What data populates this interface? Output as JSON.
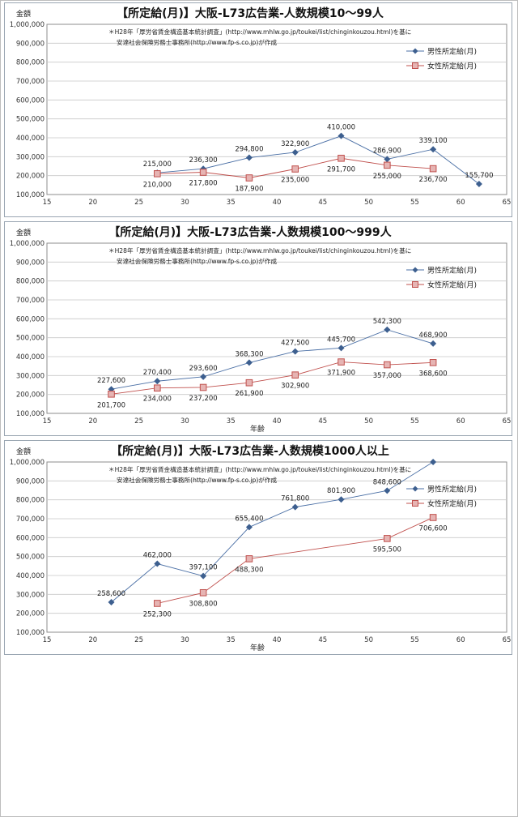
{
  "chart_data": [
    {
      "type": "line",
      "title": "【所定給(月)】大阪-L73広告業-人数規模10～99人",
      "ylabel": "金額",
      "xlabel": "",
      "source_note": [
        "＊H28年「厚労省賃金構造基本統計調査」(http://www.mhlw.go.jp/toukei/list/chinginkouzou.html)を基に",
        "安達社会保険労務士事務所(http://www.fp-s.co.jp)が作成"
      ],
      "xlim": [
        15,
        65
      ],
      "ylim": [
        100000,
        1000000
      ],
      "xticks": [
        "15",
        "20",
        "25",
        "30",
        "35",
        "40",
        "45",
        "50",
        "55",
        "60",
        "65"
      ],
      "yticks": [
        "100,000",
        "200,000",
        "300,000",
        "400,000",
        "500,000",
        "600,000",
        "700,000",
        "800,000",
        "900,000",
        "1,000,000"
      ],
      "legend_position": "top-right",
      "series": [
        {
          "name": "男性所定給(月)",
          "color": "#4a6fa5",
          "marker": "diamond",
          "x": [
            27,
            32,
            37,
            42,
            47,
            52,
            57,
            62
          ],
          "values": [
            215000,
            236300,
            294800,
            322900,
            410000,
            286900,
            339100,
            155700
          ],
          "labels": [
            "215,000",
            "236,300",
            "294,800",
            "322,900",
            "410,000",
            "286,900",
            "339,100",
            "155,700"
          ]
        },
        {
          "name": "女性所定給(月)",
          "color": "#c0504d",
          "marker": "square",
          "x": [
            27,
            32,
            37,
            42,
            47,
            52,
            57
          ],
          "values": [
            210000,
            217800,
            187900,
            235000,
            291700,
            255000,
            236700
          ],
          "labels": [
            "210,000",
            "217,800",
            "187,900",
            "235,000",
            "291,700",
            "255,000",
            "236,700"
          ]
        }
      ]
    },
    {
      "type": "line",
      "title": "【所定給(月)】大阪-L73広告業-人数規模100～999人",
      "ylabel": "金額",
      "xlabel": "年齢",
      "source_note": [
        "＊H28年「厚労省賃金構造基本統計調査」(http://www.mhlw.go.jp/toukei/list/chinginkouzou.html)を基に",
        "安達社会保険労務士事務所(http://www.fp-s.co.jp)が作成"
      ],
      "xlim": [
        15,
        65
      ],
      "ylim": [
        100000,
        1000000
      ],
      "xticks": [
        "15",
        "20",
        "25",
        "30",
        "35",
        "40",
        "45",
        "50",
        "55",
        "60",
        "65"
      ],
      "yticks": [
        "100,000",
        "200,000",
        "300,000",
        "400,000",
        "500,000",
        "600,000",
        "700,000",
        "800,000",
        "900,000",
        "1,000,000"
      ],
      "legend_position": "top-right",
      "series": [
        {
          "name": "男性所定給(月)",
          "color": "#4a6fa5",
          "marker": "diamond",
          "x": [
            22,
            27,
            32,
            37,
            42,
            47,
            52,
            57
          ],
          "values": [
            227600,
            270400,
            293600,
            368300,
            427500,
            445700,
            542300,
            468900
          ],
          "labels": [
            "227,600",
            "270,400",
            "293,600",
            "368,300",
            "427,500",
            "445,700",
            "542,300",
            "468,900"
          ]
        },
        {
          "name": "女性所定給(月)",
          "color": "#c0504d",
          "marker": "square",
          "x": [
            22,
            27,
            32,
            37,
            42,
            47,
            52,
            57
          ],
          "values": [
            201700,
            234000,
            237200,
            261900,
            302900,
            371900,
            357000,
            368600
          ],
          "labels": [
            "201,700",
            "234,000",
            "237,200",
            "261,900",
            "302,900",
            "371,900",
            "357,000",
            "368,600"
          ]
        }
      ]
    },
    {
      "type": "line",
      "title": "【所定給(月)】大阪-L73広告業-人数規模1000人以上",
      "ylabel": "金額",
      "xlabel": "年齢",
      "source_note": [
        "＊H28年「厚労省賃金構造基本統計調査」(http://www.mhlw.go.jp/toukei/list/chinginkouzou.html)を基に",
        "安達社会保険労務士事務所(http://www.fp-s.co.jp)が作成"
      ],
      "xlim": [
        15,
        65
      ],
      "ylim": [
        100000,
        1000000
      ],
      "xticks": [
        "15",
        "20",
        "25",
        "30",
        "35",
        "40",
        "45",
        "50",
        "55",
        "60",
        "65"
      ],
      "yticks": [
        "100,000",
        "200,000",
        "300,000",
        "400,000",
        "500,000",
        "600,000",
        "700,000",
        "800,000",
        "900,000",
        "1,000,000"
      ],
      "legend_position": "top-right",
      "series": [
        {
          "name": "男性所定給(月)",
          "color": "#4a6fa5",
          "marker": "diamond",
          "x": [
            22,
            27,
            32,
            37,
            42,
            47,
            52,
            57
          ],
          "values": [
            258600,
            462000,
            397100,
            655400,
            761800,
            801900,
            848600,
            1000000
          ],
          "labels": [
            "258,600",
            "462,000",
            "397,100",
            "655,400",
            "761,800",
            "801,900",
            "848,600",
            ""
          ]
        },
        {
          "name": "女性所定給(月)",
          "color": "#c0504d",
          "marker": "square",
          "x": [
            27,
            32,
            37,
            52,
            57
          ],
          "values": [
            252300,
            308800,
            488300,
            595500,
            706600
          ],
          "labels": [
            "252,300",
            "308,800",
            "488,300",
            "595,500",
            "706,600"
          ]
        }
      ]
    }
  ]
}
